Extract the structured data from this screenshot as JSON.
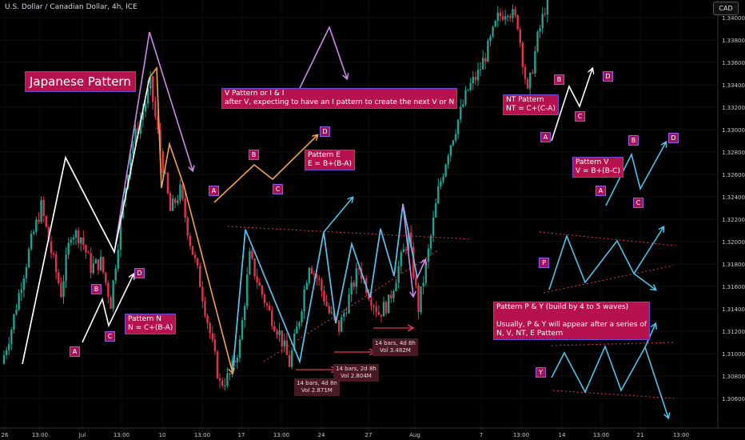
{
  "header": {
    "title": "U.S. Dollar / Canadian Dollar, 4h, ICE",
    "currency_button": "CAD"
  },
  "colors": {
    "bull": "#21a28e",
    "bear": "#e0344d",
    "wave_white": "#ffffff",
    "wave_violet": "#cc8ae8",
    "wave_orange": "#f2a24b",
    "wave_cyan": "#4fc3e8",
    "channel": "#e0345a",
    "label_bg": "#b5124e",
    "label_border": "#6b4cd6"
  },
  "chart_data": {
    "type": "candlestick",
    "title": "U.S. Dollar / Canadian Dollar, 4h, ICE",
    "ylabel": "CAD",
    "ylim": [
      1.306,
      1.347
    ],
    "y_ticks": [
      "1.34000",
      "1.33800",
      "1.33600",
      "1.33400",
      "1.33200",
      "1.33000",
      "1.32800",
      "1.32600",
      "1.32400",
      "1.32200",
      "1.32000",
      "1.31800",
      "1.31600",
      "1.31400",
      "1.31200",
      "1.31000",
      "1.30800",
      "1.30600"
    ],
    "x_ticks": [
      "26",
      "13:00",
      "Jul",
      "13:00",
      "10",
      "13:00",
      "17",
      "13:00",
      "24",
      "27",
      "Aug",
      "7",
      "13:00",
      "14",
      "13:00",
      "21",
      "13:00"
    ],
    "price_path": [
      1.312,
      1.3155,
      1.32,
      1.324,
      1.3275,
      1.323,
      1.319,
      1.325,
      1.3245,
      1.3215,
      1.322,
      1.318,
      1.326,
      1.333,
      1.336,
      1.3395,
      1.333,
      1.327,
      1.329,
      1.324,
      1.32,
      1.315,
      1.31,
      1.3108,
      1.314,
      1.3225,
      1.3195,
      1.317,
      1.315,
      1.312,
      1.3165,
      1.322,
      1.32,
      1.317,
      1.3155,
      1.3185,
      1.3215,
      1.319,
      1.317,
      1.318,
      1.3215,
      1.3245,
      1.3175,
      1.323,
      1.329,
      1.333,
      1.336,
      1.339,
      1.3405,
      1.343,
      1.346,
      1.347,
      1.3455,
      1.3385,
      1.344,
      1.348
    ]
  },
  "labels": {
    "japanese_pattern": "Japanese Pattern",
    "pattern_n": "Pattern N\nN = C+(B-A)",
    "pattern_e": "Pattern E\nE = B+(B-A)",
    "v_pattern": "V Pattern or I & I\nafter V, expecting to have an I pattern to create the next V or N",
    "nt_pattern": "NT Pattern\nNT = C+(C-A)",
    "pattern_v": "Pattern V\nV = B+(B-C)",
    "p_y": "Pattern P & Y (build by 4 to 5 waves)\n\nUsually, P & Y will appear after a series of\nN, V, NT, E Pattern"
  },
  "points": {
    "a": "A",
    "b": "B",
    "c": "C",
    "d": "D",
    "p": "P",
    "y": "Y"
  },
  "bar_stats": [
    "14 bars, 4d 8h\nVol 2.871M",
    "14 bars, 2d 8h\nVol 2.804M",
    "14 bars, 4d 8h\nVol 3.482M"
  ]
}
